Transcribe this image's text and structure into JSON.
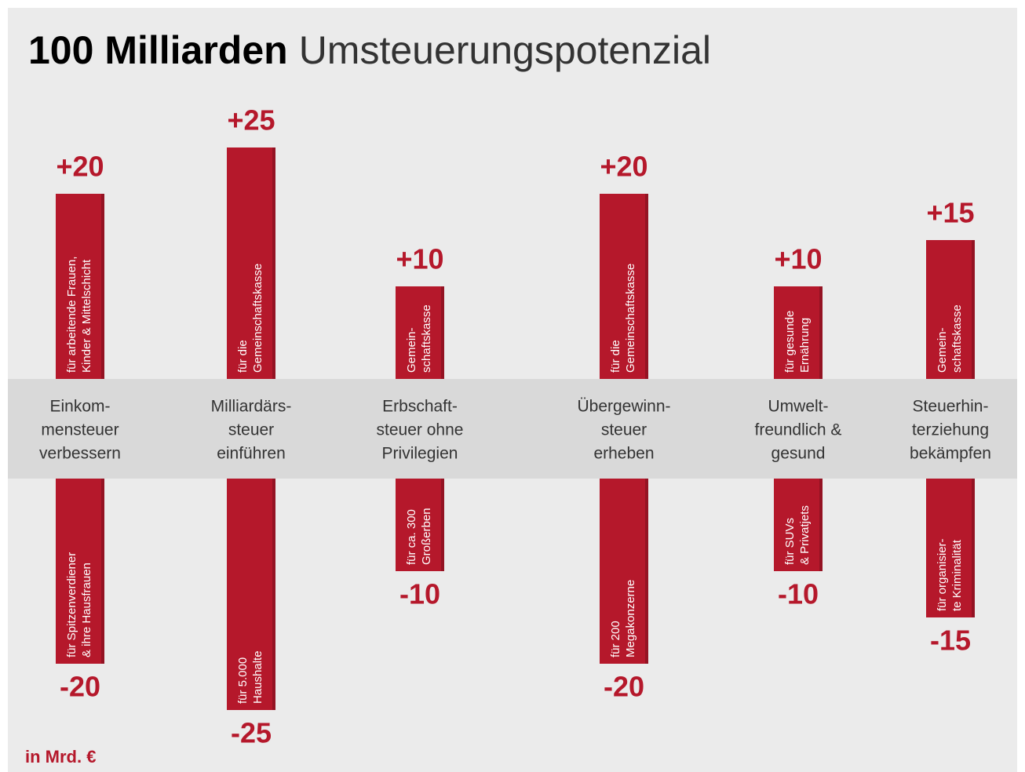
{
  "chart_data": {
    "type": "diverging_bar",
    "title_bold": "100 Milliarden",
    "title_rest": "Umsteuerungspotenzial",
    "unit_note": "in Mrd. €",
    "categories": [
      [
        "Einkom-",
        "mensteuer",
        "verbessern"
      ],
      [
        "Milliardärs-",
        "steuer",
        "einführen"
      ],
      [
        "Erbschaft-",
        "steuer ohne",
        "Privilegien"
      ],
      [
        "Übergewinn-",
        "steuer",
        "erheben"
      ],
      [
        "Umwelt-",
        "freundlich &",
        "gesund"
      ],
      [
        "Steuerhin-",
        "terziehung",
        "bekämpfen"
      ]
    ],
    "series": [
      {
        "color": "#b5182b",
        "values": [
          20,
          25,
          10,
          20,
          10,
          15
        ],
        "value_labels": [
          "+20",
          "+25",
          "+10",
          "+20",
          "+10",
          "+15"
        ],
        "bar_texts": [
          [
            "für arbeitende Frauen,",
            "Kinder & Mittelschicht"
          ],
          [
            "für die",
            "Gemeinschaftskasse"
          ],
          [
            "Gemein-",
            "schaftskasse"
          ],
          [
            "für die",
            "Gemeinschaftskasse"
          ],
          [
            "für gesunde",
            "Ernährung"
          ],
          [
            "Gemein-",
            "schaftskasse"
          ]
        ]
      },
      {
        "color": "#b5182b",
        "values": [
          -20,
          -25,
          -10,
          -20,
          -10,
          -15
        ],
        "bar_texts": [
          [
            "für Spitzenverdiener",
            "& ihre Hausfrauen"
          ],
          [
            "für 5.000",
            "Haushalte"
          ],
          [
            "für ca. 300",
            "Großerben"
          ],
          [
            "für 200",
            "Megakonzerne"
          ],
          [
            "für SUVs",
            "& Privatjets"
          ],
          [
            "für organisier-",
            "te Kriminalität"
          ]
        ]
      }
    ]
  }
}
